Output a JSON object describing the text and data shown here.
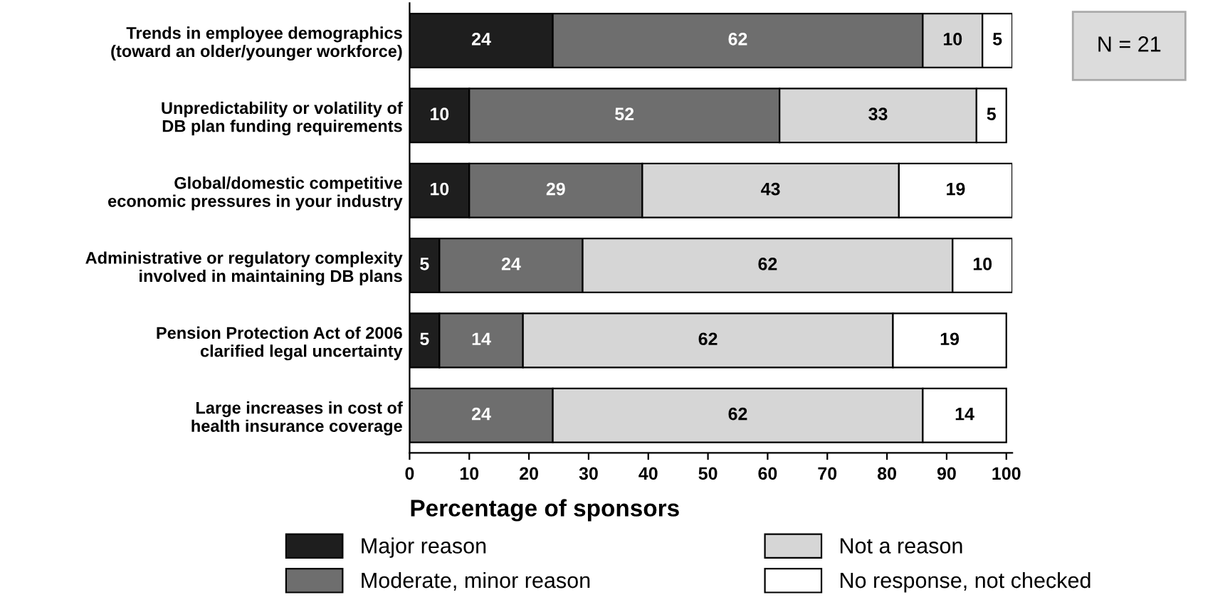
{
  "chart_data": {
    "type": "bar",
    "orientation": "horizontal",
    "stacked": true,
    "data_labels": true,
    "xlabel": "Percentage of sponsors",
    "categories": [
      "Trends in employee demographics\n(toward an older/younger workforce)",
      "Unpredictability or volatility of\nDB plan funding requirements",
      "Global/domestic competitive\neconomic pressures in your industry",
      "Administrative or regulatory complexity\ninvolved in maintaining DB plans",
      "Pension Protection Act of 2006\nclarified legal uncertainty",
      "Large increases in cost of\nhealth insurance coverage"
    ],
    "series": [
      {
        "name": "Major reason",
        "color": "#1e1e1e",
        "values": [
          24,
          10,
          10,
          5,
          5,
          null
        ]
      },
      {
        "name": "Moderate, minor reason",
        "color": "#6e6e6e",
        "values": [
          62,
          52,
          29,
          24,
          14,
          24
        ]
      },
      {
        "name": "Not a reason",
        "color": "#d6d6d6",
        "values": [
          10,
          33,
          43,
          62,
          62,
          62
        ]
      },
      {
        "name": "No response, not checked",
        "color": "#ffffff",
        "values": [
          5,
          5,
          19,
          10,
          19,
          14
        ]
      }
    ],
    "xlim": [
      0,
      101
    ],
    "xticks": [
      0,
      10,
      20,
      30,
      40,
      50,
      60,
      70,
      80,
      90,
      100
    ],
    "grid": false,
    "legend": "bottom",
    "annotations": [
      "N = 21"
    ]
  }
}
